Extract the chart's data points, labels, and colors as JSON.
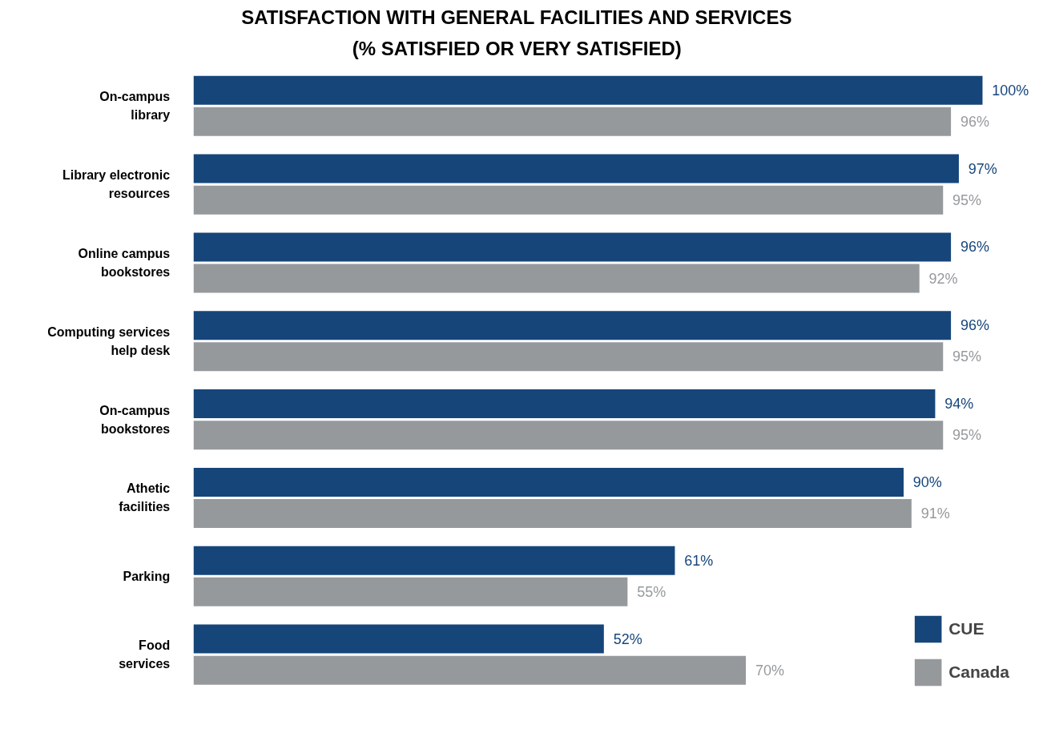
{
  "chart_data": {
    "type": "bar",
    "orientation": "horizontal",
    "title": "SATISFACTION WITH GENERAL FACILITIES AND SERVICES",
    "subtitle": "(% SATISFIED OR VERY SATISFIED)",
    "categories": [
      "On-campus\nlibrary",
      "Library electronic\nresources",
      "Online campus\nbookstores",
      "Computing services\nhelp desk",
      "On-campus\nbookstores",
      "Athetic\nfacilities",
      "Parking",
      "Food\nservices"
    ],
    "series": [
      {
        "name": "CUE",
        "color": "#16457a",
        "values": [
          100,
          97,
          96,
          96,
          94,
          90,
          61,
          52
        ],
        "value_labels": [
          "100%",
          "97%",
          "96%",
          "96%",
          "94%",
          "90%",
          "61%",
          "52%"
        ]
      },
      {
        "name": "Canada",
        "color": "#96999c",
        "values": [
          96,
          95,
          92,
          95,
          95,
          91,
          55,
          70
        ],
        "value_labels": [
          "96%",
          "95%",
          "92%",
          "95%",
          "95%",
          "91%",
          "55%",
          "70%"
        ]
      }
    ],
    "legend": "bottom right",
    "grid": false
  }
}
